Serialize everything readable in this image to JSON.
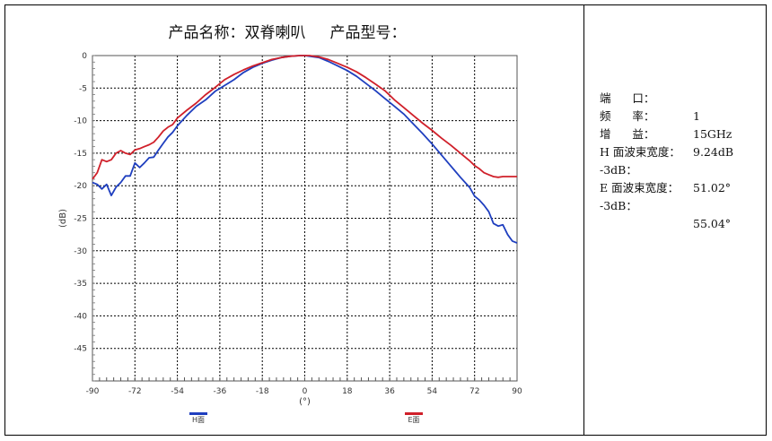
{
  "chart_data": {
    "type": "line",
    "title": "产品名称：双脊喇叭     产品型号：",
    "xlabel": "(°)",
    "ylabel": "(dB)",
    "xlim": [
      -90,
      90
    ],
    "ylim": [
      -50,
      0
    ],
    "x_ticks": [
      "-90",
      "-72",
      "-54",
      "-36",
      "-18",
      "0",
      "18",
      "36",
      "54",
      "72",
      "90"
    ],
    "y_ticks": [
      "0",
      "-5",
      "-10",
      "-15",
      "-20",
      "-25",
      "-30",
      "-35",
      "-40",
      "-45"
    ],
    "grid": true,
    "legend": "bottom",
    "series": [
      {
        "name": "H面",
        "color": "#1f3fbf",
        "x": [
          -90,
          -88,
          -86,
          -84,
          -82,
          -80,
          -78,
          -76,
          -74,
          -72,
          -70,
          -68,
          -66,
          -64,
          -62,
          -60,
          -58,
          -56,
          -54,
          -50,
          -46,
          -42,
          -38,
          -34,
          -30,
          -26,
          -22,
          -18,
          -14,
          -10,
          -6,
          -2,
          0,
          2,
          6,
          10,
          14,
          18,
          22,
          26,
          30,
          34,
          38,
          42,
          46,
          50,
          54,
          58,
          62,
          66,
          70,
          72,
          74,
          76,
          78,
          80,
          82,
          84,
          86,
          88,
          90
        ],
        "y": [
          -19.5,
          -19.8,
          -20.5,
          -19.8,
          -21.5,
          -20.2,
          -19.5,
          -18.5,
          -18.5,
          -16.5,
          -17.2,
          -16.5,
          -15.7,
          -15.6,
          -14.5,
          -13.5,
          -12.5,
          -11.8,
          -10.8,
          -9.2,
          -7.8,
          -6.8,
          -5.5,
          -4.6,
          -3.7,
          -2.6,
          -1.8,
          -1.2,
          -0.7,
          -0.3,
          -0.1,
          0.0,
          0.0,
          -0.1,
          -0.3,
          -0.9,
          -1.6,
          -2.3,
          -3.2,
          -4.3,
          -5.4,
          -6.6,
          -7.8,
          -9.0,
          -10.5,
          -12.0,
          -13.6,
          -15.3,
          -17.0,
          -18.7,
          -20.3,
          -21.6,
          -22.2,
          -23.0,
          -24.0,
          -25.8,
          -26.2,
          -26.0,
          -27.5,
          -28.5,
          -28.8
        ]
      },
      {
        "name": "E面",
        "color": "#d0202a",
        "x": [
          -90,
          -88,
          -86,
          -84,
          -82,
          -80,
          -78,
          -76,
          -74,
          -72,
          -70,
          -68,
          -66,
          -64,
          -62,
          -60,
          -58,
          -56,
          -54,
          -50,
          -46,
          -42,
          -38,
          -34,
          -30,
          -26,
          -22,
          -18,
          -14,
          -10,
          -6,
          -2,
          0,
          2,
          6,
          10,
          14,
          18,
          22,
          26,
          30,
          34,
          38,
          42,
          46,
          50,
          54,
          58,
          62,
          66,
          70,
          72,
          74,
          76,
          78,
          80,
          82,
          84,
          86,
          88,
          90
        ],
        "y": [
          -19.0,
          -18.0,
          -16.0,
          -16.3,
          -16.0,
          -15.0,
          -14.6,
          -15.0,
          -15.2,
          -14.5,
          -14.3,
          -14.0,
          -13.7,
          -13.3,
          -12.5,
          -11.6,
          -11.0,
          -10.6,
          -9.6,
          -8.4,
          -7.3,
          -6.0,
          -4.9,
          -3.7,
          -2.9,
          -2.2,
          -1.6,
          -1.1,
          -0.6,
          -0.3,
          -0.1,
          0.0,
          0.0,
          0.0,
          -0.2,
          -0.6,
          -1.2,
          -1.8,
          -2.5,
          -3.4,
          -4.4,
          -5.4,
          -6.8,
          -8.0,
          -9.2,
          -10.4,
          -11.5,
          -12.7,
          -13.8,
          -15.0,
          -16.2,
          -16.9,
          -17.4,
          -18.0,
          -18.3,
          -18.6,
          -18.7,
          -18.6,
          -18.6,
          -18.6,
          -18.6
        ]
      }
    ]
  },
  "info": {
    "port_label": "端      口：",
    "port_value": "1",
    "freq_label": "频      率：",
    "freq_value": "15GHz",
    "gain_label": "增      益：",
    "gain_value": "9.24dB",
    "h_beam_label": "H 面波束宽度：",
    "h_3db_label": "-3dB：",
    "h_3db_value": "51.02°",
    "e_beam_label": "E 面波束宽度：",
    "e_3db_label": "-3dB：",
    "e_3db_value": "55.04°"
  }
}
